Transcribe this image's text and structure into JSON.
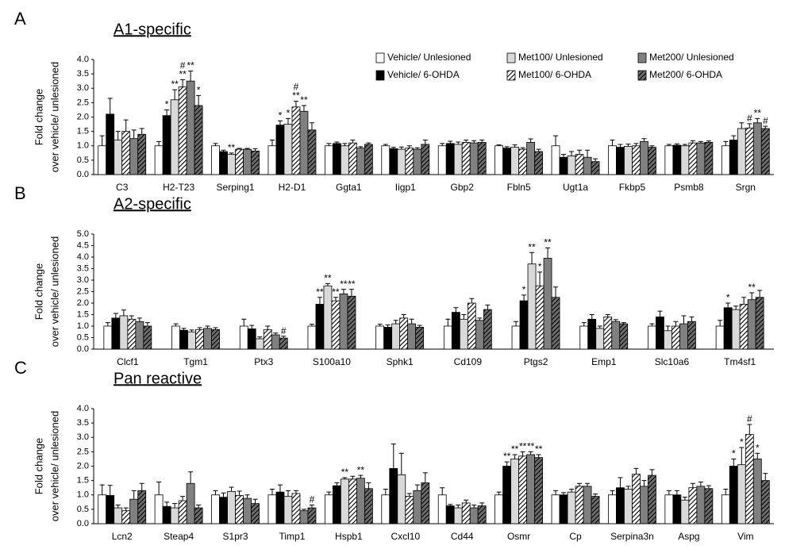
{
  "chart_data": [
    {
      "type": "bar",
      "panel": "A",
      "title": "A1-specific",
      "ylabel": [
        "Fold change",
        "over vehicle/ unlesioned"
      ],
      "legend": "top-right",
      "ylim": [
        0,
        4
      ],
      "yticks": [
        {
          "value": 0,
          "label": "0.0"
        },
        {
          "value": 0.5,
          "label": "0.5"
        },
        {
          "value": 1,
          "label": "1.0"
        },
        {
          "value": 1.5,
          "label": "1.5"
        },
        {
          "value": 2,
          "label": "2.0"
        },
        {
          "value": 2.5,
          "label": "2.5"
        },
        {
          "value": 3,
          "label": "3.0"
        },
        {
          "value": 3.5,
          "label": "3.5"
        },
        {
          "value": 4,
          "label": "4.0"
        }
      ],
      "categories": [
        "C3",
        "H2-T23",
        "Serping1",
        "H2-D1",
        "Ggta1",
        "Iigp1",
        "Gbp2",
        "Fbln5",
        "Ugt1a",
        "Fkbp5",
        "Psmb8",
        "Srgn"
      ],
      "series": [
        {
          "name": "Vehicle/ Unlesioned",
          "color": "#ffffff",
          "hatch": false,
          "values": [
            1.0,
            1.0,
            1.0,
            1.0,
            1.0,
            1.0,
            1.0,
            1.0,
            1.0,
            1.0,
            1.0,
            1.0
          ],
          "errors": [
            0.35,
            0.15,
            0.08,
            0.2,
            0.08,
            0.05,
            0.08,
            0.03,
            0.35,
            0.2,
            0.05,
            0.15
          ],
          "sig": [
            null,
            null,
            null,
            null,
            null,
            null,
            null,
            null,
            null,
            null,
            null,
            null
          ]
        },
        {
          "name": "Vehicle/ 6-OHDA",
          "color": "#000000",
          "hatch": false,
          "values": [
            2.1,
            2.05,
            0.8,
            1.72,
            1.08,
            0.9,
            1.08,
            0.92,
            0.6,
            0.95,
            1.02,
            1.2
          ],
          "errors": [
            0.55,
            0.2,
            0.05,
            0.15,
            0.05,
            0.05,
            0.08,
            0.05,
            0.1,
            0.1,
            0.05,
            0.15
          ],
          "sig": [
            null,
            [
              "*"
            ],
            null,
            [
              "*"
            ],
            null,
            null,
            null,
            null,
            null,
            null,
            null,
            null
          ]
        },
        {
          "name": "Met100/ Unlesioned",
          "color": "#d9d9d9",
          "hatch": false,
          "values": [
            1.2,
            2.6,
            0.7,
            1.75,
            1.0,
            0.88,
            1.05,
            0.95,
            0.65,
            0.98,
            1.0,
            1.6
          ],
          "errors": [
            0.3,
            0.35,
            0.05,
            0.2,
            0.08,
            0.08,
            0.08,
            0.08,
            0.15,
            0.08,
            0.05,
            0.2
          ],
          "sig": [
            null,
            [
              "**"
            ],
            [
              "**"
            ],
            [
              "*"
            ],
            null,
            null,
            null,
            null,
            null,
            null,
            null,
            null
          ]
        },
        {
          "name": "Met100/ 6-OHDA",
          "color": "#ffffff",
          "hatch": true,
          "values": [
            1.5,
            3.05,
            0.88,
            2.35,
            1.1,
            0.92,
            1.12,
            0.88,
            0.7,
            1.0,
            1.1,
            1.62
          ],
          "errors": [
            0.4,
            0.25,
            0.03,
            0.2,
            0.1,
            0.08,
            0.08,
            0.05,
            0.15,
            0.08,
            0.08,
            0.15
          ],
          "sig": [
            null,
            [
              "**",
              "#"
            ],
            null,
            [
              "**",
              "#"
            ],
            null,
            null,
            null,
            null,
            null,
            null,
            null,
            [
              "#"
            ]
          ]
        },
        {
          "name": "Met200/ Unlesioned",
          "color": "#808080",
          "hatch": false,
          "values": [
            1.25,
            3.25,
            0.88,
            2.2,
            0.92,
            0.88,
            1.1,
            1.12,
            0.6,
            1.15,
            1.1,
            1.8
          ],
          "errors": [
            0.3,
            0.35,
            0.03,
            0.2,
            0.05,
            0.05,
            0.08,
            0.12,
            0.25,
            0.1,
            0.05,
            0.15
          ],
          "sig": [
            null,
            [
              "**"
            ],
            null,
            [
              "**"
            ],
            null,
            null,
            null,
            null,
            null,
            null,
            null,
            [
              "**"
            ]
          ]
        },
        {
          "name": "Met200/ 6-OHDA",
          "color": "#6e6e6e",
          "hatch": true,
          "values": [
            1.4,
            2.4,
            0.82,
            1.55,
            1.05,
            1.05,
            1.12,
            0.8,
            0.45,
            0.95,
            1.12,
            1.6
          ],
          "errors": [
            0.2,
            0.35,
            0.08,
            0.25,
            0.05,
            0.15,
            0.08,
            0.08,
            0.1,
            0.05,
            0.05,
            0.08
          ],
          "sig": [
            null,
            [
              "*"
            ],
            null,
            null,
            null,
            null,
            null,
            null,
            null,
            null,
            null,
            [
              "#"
            ]
          ]
        }
      ]
    },
    {
      "type": "bar",
      "panel": "B",
      "title": "A2-specific",
      "ylabel": [
        "Fold change",
        "over vehicle/ unlesioned"
      ],
      "ylim": [
        0,
        5
      ],
      "yticks": [
        {
          "value": 0,
          "label": "0.0"
        },
        {
          "value": 0.5,
          "label": "0.5"
        },
        {
          "value": 1,
          "label": "1.0"
        },
        {
          "value": 1.5,
          "label": "1.5"
        },
        {
          "value": 2,
          "label": "2.0"
        },
        {
          "value": 2.5,
          "label": "2.5"
        },
        {
          "value": 3,
          "label": "3.0"
        },
        {
          "value": 3.5,
          "label": "3.5"
        },
        {
          "value": 4,
          "label": "4.0"
        },
        {
          "value": 4.5,
          "label": "4.5"
        },
        {
          "value": 5,
          "label": "5.0"
        }
      ],
      "categories": [
        "Clcf1",
        "Tgm1",
        "Ptx3",
        "S100a10",
        "Sphk1",
        "Cd109",
        "Ptgs2",
        "Emp1",
        "Slc10a6",
        "Tm4sf1"
      ],
      "series": [
        {
          "color": "#ffffff",
          "hatch": false,
          "values": [
            1.0,
            1.0,
            1.0,
            1.0,
            1.0,
            1.0,
            1.0,
            1.0,
            1.0,
            1.0
          ],
          "errors": [
            0.15,
            0.1,
            0.3,
            0.08,
            0.08,
            0.3,
            0.2,
            0.15,
            0.1,
            0.25
          ],
          "sig": [
            null,
            null,
            null,
            null,
            null,
            null,
            null,
            null,
            null,
            null
          ]
        },
        {
          "color": "#000000",
          "hatch": false,
          "values": [
            1.35,
            0.82,
            0.88,
            1.95,
            0.95,
            1.6,
            2.1,
            1.3,
            1.4,
            1.8
          ],
          "errors": [
            0.2,
            0.08,
            0.15,
            0.3,
            0.1,
            0.2,
            0.25,
            0.2,
            0.25,
            0.2
          ],
          "sig": [
            null,
            null,
            null,
            [
              "**"
            ],
            null,
            null,
            [
              "*"
            ],
            null,
            null,
            [
              "*"
            ]
          ]
        },
        {
          "color": "#d9d9d9",
          "hatch": false,
          "values": [
            1.45,
            0.75,
            0.45,
            2.75,
            1.1,
            1.3,
            3.7,
            0.9,
            0.8,
            1.72
          ],
          "errors": [
            0.25,
            0.08,
            0.08,
            0.1,
            0.15,
            0.2,
            0.5,
            0.1,
            0.2,
            0.15
          ],
          "sig": [
            null,
            null,
            null,
            [
              "**"
            ],
            null,
            null,
            [
              "**"
            ],
            null,
            null,
            null
          ]
        },
        {
          "color": "#ffffff",
          "hatch": true,
          "values": [
            1.3,
            0.85,
            0.85,
            2.1,
            1.35,
            2.0,
            2.75,
            1.4,
            1.0,
            1.95
          ],
          "errors": [
            0.15,
            0.08,
            0.15,
            0.15,
            0.15,
            0.2,
            0.6,
            0.1,
            0.2,
            0.3
          ],
          "sig": [
            null,
            null,
            null,
            [
              "**"
            ],
            null,
            null,
            [
              "*"
            ],
            null,
            null,
            null
          ]
        },
        {
          "color": "#808080",
          "hatch": false,
          "values": [
            1.2,
            0.9,
            0.62,
            2.4,
            1.1,
            1.25,
            3.95,
            1.2,
            1.1,
            2.15
          ],
          "errors": [
            0.15,
            0.1,
            0.08,
            0.2,
            0.2,
            0.1,
            0.45,
            0.08,
            0.35,
            0.3
          ],
          "sig": [
            null,
            null,
            null,
            [
              "**"
            ],
            null,
            null,
            [
              "**"
            ],
            null,
            null,
            [
              "**"
            ]
          ]
        },
        {
          "color": "#6e6e6e",
          "hatch": true,
          "values": [
            1.0,
            0.85,
            0.48,
            2.3,
            0.95,
            1.72,
            2.25,
            1.1,
            1.2,
            2.25
          ],
          "errors": [
            0.15,
            0.08,
            0.08,
            0.3,
            0.08,
            0.2,
            0.45,
            0.05,
            0.2,
            0.3
          ],
          "sig": [
            null,
            null,
            [
              "#"
            ],
            [
              "**"
            ],
            null,
            null,
            null,
            null,
            null,
            null
          ]
        }
      ]
    },
    {
      "type": "bar",
      "panel": "C",
      "title": "Pan reactive",
      "ylabel": [
        "Fold change",
        "over vehicle/ unlesioned"
      ],
      "ylim": [
        0,
        4
      ],
      "yticks": [
        {
          "value": 0,
          "label": "0.0"
        },
        {
          "value": 0.5,
          "label": "0.5"
        },
        {
          "value": 1,
          "label": "1.0"
        },
        {
          "value": 1.5,
          "label": "1.5"
        },
        {
          "value": 2,
          "label": "2.0"
        },
        {
          "value": 2.5,
          "label": "2.5"
        },
        {
          "value": 3,
          "label": "3.0"
        },
        {
          "value": 3.5,
          "label": "3.5"
        },
        {
          "value": 4,
          "label": "4.0"
        }
      ],
      "categories": [
        "Lcn2",
        "Steap4",
        "S1pr3",
        "Timp1",
        "Hspb1",
        "Cxcl10",
        "Cd44",
        "Osmr",
        "Cp",
        "Serpina3n",
        "Aspg",
        "Vim"
      ],
      "series": [
        {
          "color": "#ffffff",
          "hatch": false,
          "values": [
            1.0,
            1.0,
            1.0,
            1.0,
            1.0,
            1.0,
            1.0,
            1.0,
            1.0,
            1.0,
            1.0,
            1.0
          ],
          "errors": [
            0.35,
            0.45,
            0.15,
            0.2,
            0.1,
            0.2,
            0.25,
            0.1,
            0.15,
            0.15,
            0.15,
            0.2
          ],
          "sig": [
            null,
            null,
            null,
            null,
            null,
            null,
            null,
            null,
            null,
            null,
            null,
            null
          ]
        },
        {
          "color": "#000000",
          "hatch": false,
          "values": [
            0.98,
            0.6,
            0.92,
            1.1,
            1.32,
            1.92,
            0.62,
            2.0,
            1.0,
            1.25,
            1.0,
            2.0
          ],
          "errors": [
            0.35,
            0.15,
            0.15,
            0.25,
            0.1,
            0.85,
            0.05,
            0.15,
            0.08,
            0.35,
            0.15,
            0.25
          ],
          "sig": [
            null,
            null,
            null,
            null,
            null,
            null,
            null,
            [
              "**"
            ],
            null,
            null,
            null,
            [
              "*"
            ]
          ]
        },
        {
          "color": "#d9d9d9",
          "hatch": false,
          "values": [
            0.55,
            0.55,
            1.12,
            0.95,
            1.55,
            1.7,
            0.55,
            2.25,
            1.1,
            1.2,
            0.82,
            2.05
          ],
          "errors": [
            0.1,
            0.15,
            0.15,
            0.2,
            0.05,
            0.75,
            0.1,
            0.15,
            0.1,
            0.1,
            0.1,
            0.6
          ],
          "sig": [
            null,
            null,
            null,
            null,
            [
              "**"
            ],
            null,
            null,
            [
              "**"
            ],
            null,
            null,
            null,
            [
              "*"
            ]
          ]
        },
        {
          "color": "#ffffff",
          "hatch": true,
          "values": [
            0.45,
            0.8,
            0.98,
            1.05,
            1.55,
            0.95,
            0.72,
            2.35,
            1.3,
            1.72,
            1.25,
            3.1
          ],
          "errors": [
            0.1,
            0.15,
            0.15,
            0.1,
            0.1,
            0.1,
            0.1,
            0.15,
            0.1,
            0.2,
            0.15,
            0.35
          ],
          "sig": [
            null,
            null,
            null,
            null,
            null,
            null,
            null,
            [
              "**"
            ],
            null,
            null,
            null,
            [
              "#"
            ]
          ]
        },
        {
          "color": "#808080",
          "hatch": false,
          "values": [
            0.85,
            1.4,
            0.88,
            0.45,
            1.58,
            1.15,
            0.55,
            2.4,
            1.3,
            1.3,
            1.3,
            2.25
          ],
          "errors": [
            0.3,
            0.4,
            0.12,
            0.05,
            0.1,
            0.2,
            0.1,
            0.1,
            0.1,
            0.2,
            0.15,
            0.2
          ],
          "sig": [
            null,
            null,
            null,
            null,
            [
              "**"
            ],
            null,
            null,
            [
              "**"
            ],
            null,
            null,
            null,
            [
              "*"
            ]
          ]
        },
        {
          "color": "#6e6e6e",
          "hatch": true,
          "values": [
            1.15,
            0.55,
            0.7,
            0.55,
            1.22,
            1.42,
            0.62,
            2.3,
            0.95,
            1.68,
            1.22,
            1.5
          ],
          "errors": [
            0.25,
            0.1,
            0.15,
            0.1,
            0.2,
            0.35,
            0.1,
            0.1,
            0.08,
            0.2,
            0.1,
            0.25
          ],
          "sig": [
            null,
            null,
            null,
            [
              "#"
            ],
            null,
            null,
            null,
            [
              "**"
            ],
            null,
            null,
            null,
            null
          ]
        }
      ]
    }
  ]
}
